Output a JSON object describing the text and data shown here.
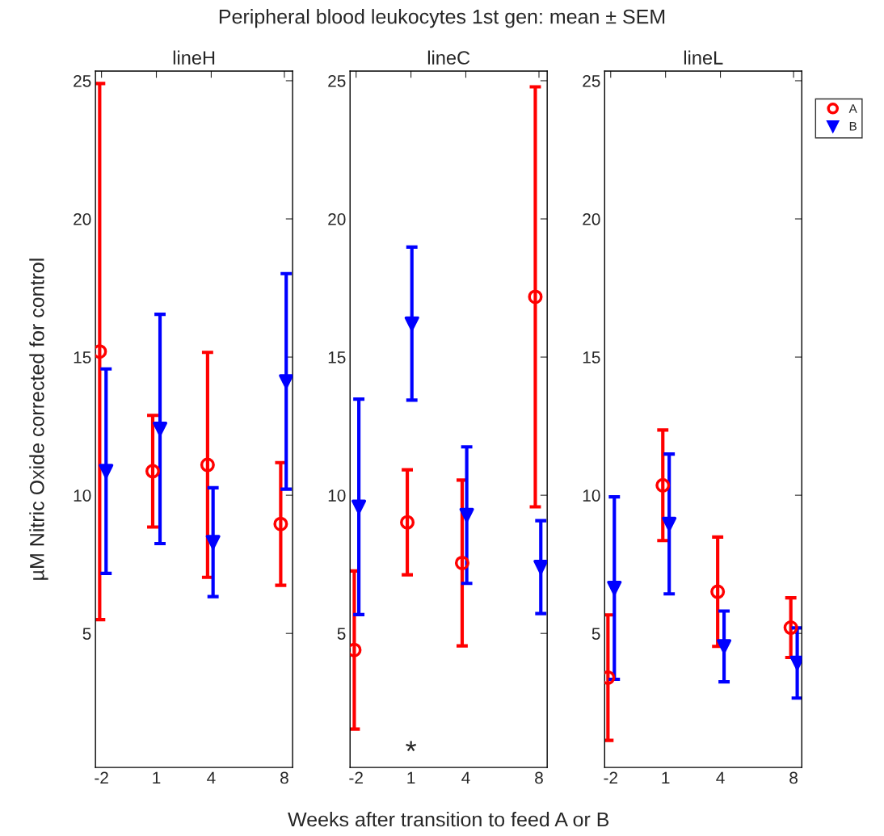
{
  "chart_data": [
    {
      "type": "scatter",
      "title": "lineH",
      "ylabel": "µM Nitric Oxide corrected for control",
      "annotations": [
        "Peripheral blood leukocytes 1st gen: mean ± SEM"
      ],
      "xlim": [
        -2.33,
        8.45
      ],
      "xticks": [
        -2,
        1,
        4,
        8
      ],
      "ylim": [
        0.15,
        25.35
      ],
      "yticks": [
        5,
        10,
        15,
        20,
        25
      ],
      "grid": false,
      "series": [
        {
          "color": "#ff0000",
          "marker": "circle",
          "x": [
            -2.1,
            0.8,
            3.8,
            7.8
          ],
          "values": [
            15.2,
            10.87,
            11.1,
            8.96
          ],
          "errors": [
            9.7,
            2.02,
            4.07,
            2.22
          ]
        },
        {
          "color": "#0000ff",
          "marker": "triangle",
          "x": [
            -1.75,
            1.2,
            4.1,
            8.1
          ],
          "values": [
            10.87,
            12.4,
            8.3,
            14.12
          ],
          "errors": [
            3.7,
            4.15,
            1.97,
            3.9
          ]
        }
      ]
    },
    {
      "type": "scatter",
      "title": "lineC",
      "xlabel": "Weeks after transition to feed A or B",
      "annotations": [
        "*"
      ],
      "xlim": [
        -2.33,
        8.45
      ],
      "xticks": [
        -2,
        1,
        4,
        8
      ],
      "ylim": [
        0.15,
        25.35
      ],
      "yticks": [
        5,
        10,
        15,
        20,
        25
      ],
      "grid": false,
      "series": [
        {
          "color": "#ff0000",
          "marker": "circle",
          "x": [
            -2.1,
            0.8,
            3.8,
            7.8
          ],
          "values": [
            4.4,
            9.02,
            7.55,
            17.18
          ],
          "errors": [
            2.86,
            1.9,
            3.0,
            7.6
          ]
        },
        {
          "color": "#0000ff",
          "marker": "triangle",
          "x": [
            -1.85,
            1.05,
            4.05,
            8.1
          ],
          "values": [
            9.58,
            16.21,
            9.28,
            7.4
          ],
          "errors": [
            3.9,
            2.77,
            2.47,
            1.68
          ]
        }
      ]
    },
    {
      "type": "scatter",
      "title": "lineL",
      "xlim": [
        -2.33,
        8.45
      ],
      "xticks": [
        -2,
        1,
        4,
        8
      ],
      "ylim": [
        0.15,
        25.35
      ],
      "yticks": [
        5,
        10,
        15,
        20,
        25
      ],
      "grid": false,
      "legend": "top right",
      "series": [
        {
          "name": "A",
          "color": "#ff0000",
          "marker": "circle",
          "x": [
            -2.15,
            0.85,
            3.85,
            7.85
          ],
          "values": [
            3.4,
            10.36,
            6.51,
            5.21
          ],
          "errors": [
            2.27,
            2.0,
            1.98,
            1.08
          ]
        },
        {
          "name": "B",
          "color": "#0000ff",
          "marker": "triangle",
          "x": [
            -1.8,
            1.2,
            4.2,
            8.2
          ],
          "values": [
            6.64,
            8.96,
            4.53,
            3.93
          ],
          "errors": [
            3.3,
            2.53,
            1.28,
            1.27
          ]
        }
      ]
    }
  ]
}
